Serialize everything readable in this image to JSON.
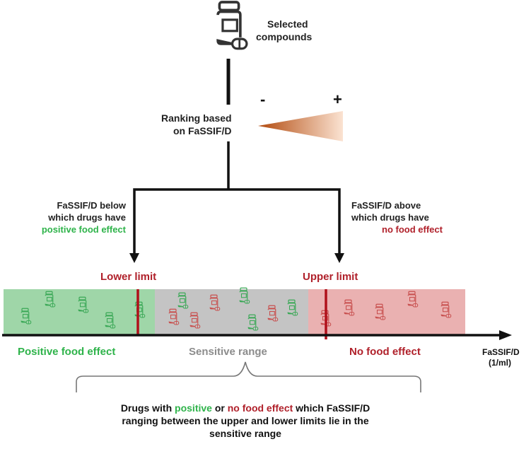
{
  "top": {
    "label_line1": "Selected",
    "label_line2": "compounds",
    "icon": "pill-bottle-icon"
  },
  "ranking": {
    "line1": "Ranking based",
    "line2": "on FaSSIF/D",
    "minus": "-",
    "plus": "+"
  },
  "left_branch": {
    "line1": "FaSSIF/D below",
    "line2": "which drugs have",
    "line3": "positive food effect"
  },
  "right_branch": {
    "line1": "FaSSIF/D above",
    "line2": "which drugs have",
    "line3": "no food effect"
  },
  "limits": {
    "lower": "Lower limit",
    "upper": "Upper limit"
  },
  "zones": {
    "positive": "Positive food effect",
    "sensitive": "Sensitive range",
    "none": "No food effect"
  },
  "axis": {
    "label_line1": "FaSSIF/D",
    "label_line2": "(1/ml)"
  },
  "note": {
    "l1_a": "Drugs with ",
    "l1_b": "positive",
    "l1_c": " or ",
    "l1_d": "no food effect",
    "l1_e": " which FaSSIF/D",
    "line2": "ranging between the upper and lower limits lie in the",
    "line3": "sensitive range"
  },
  "colors": {
    "green": "#2eb34a",
    "red": "#b0202a",
    "gray": "#8c8c8c",
    "orange": "#c0561a",
    "green_zone": "#9fd6a8",
    "gray_zone": "#c4c4c4",
    "red_zone": "#eab1b1"
  }
}
